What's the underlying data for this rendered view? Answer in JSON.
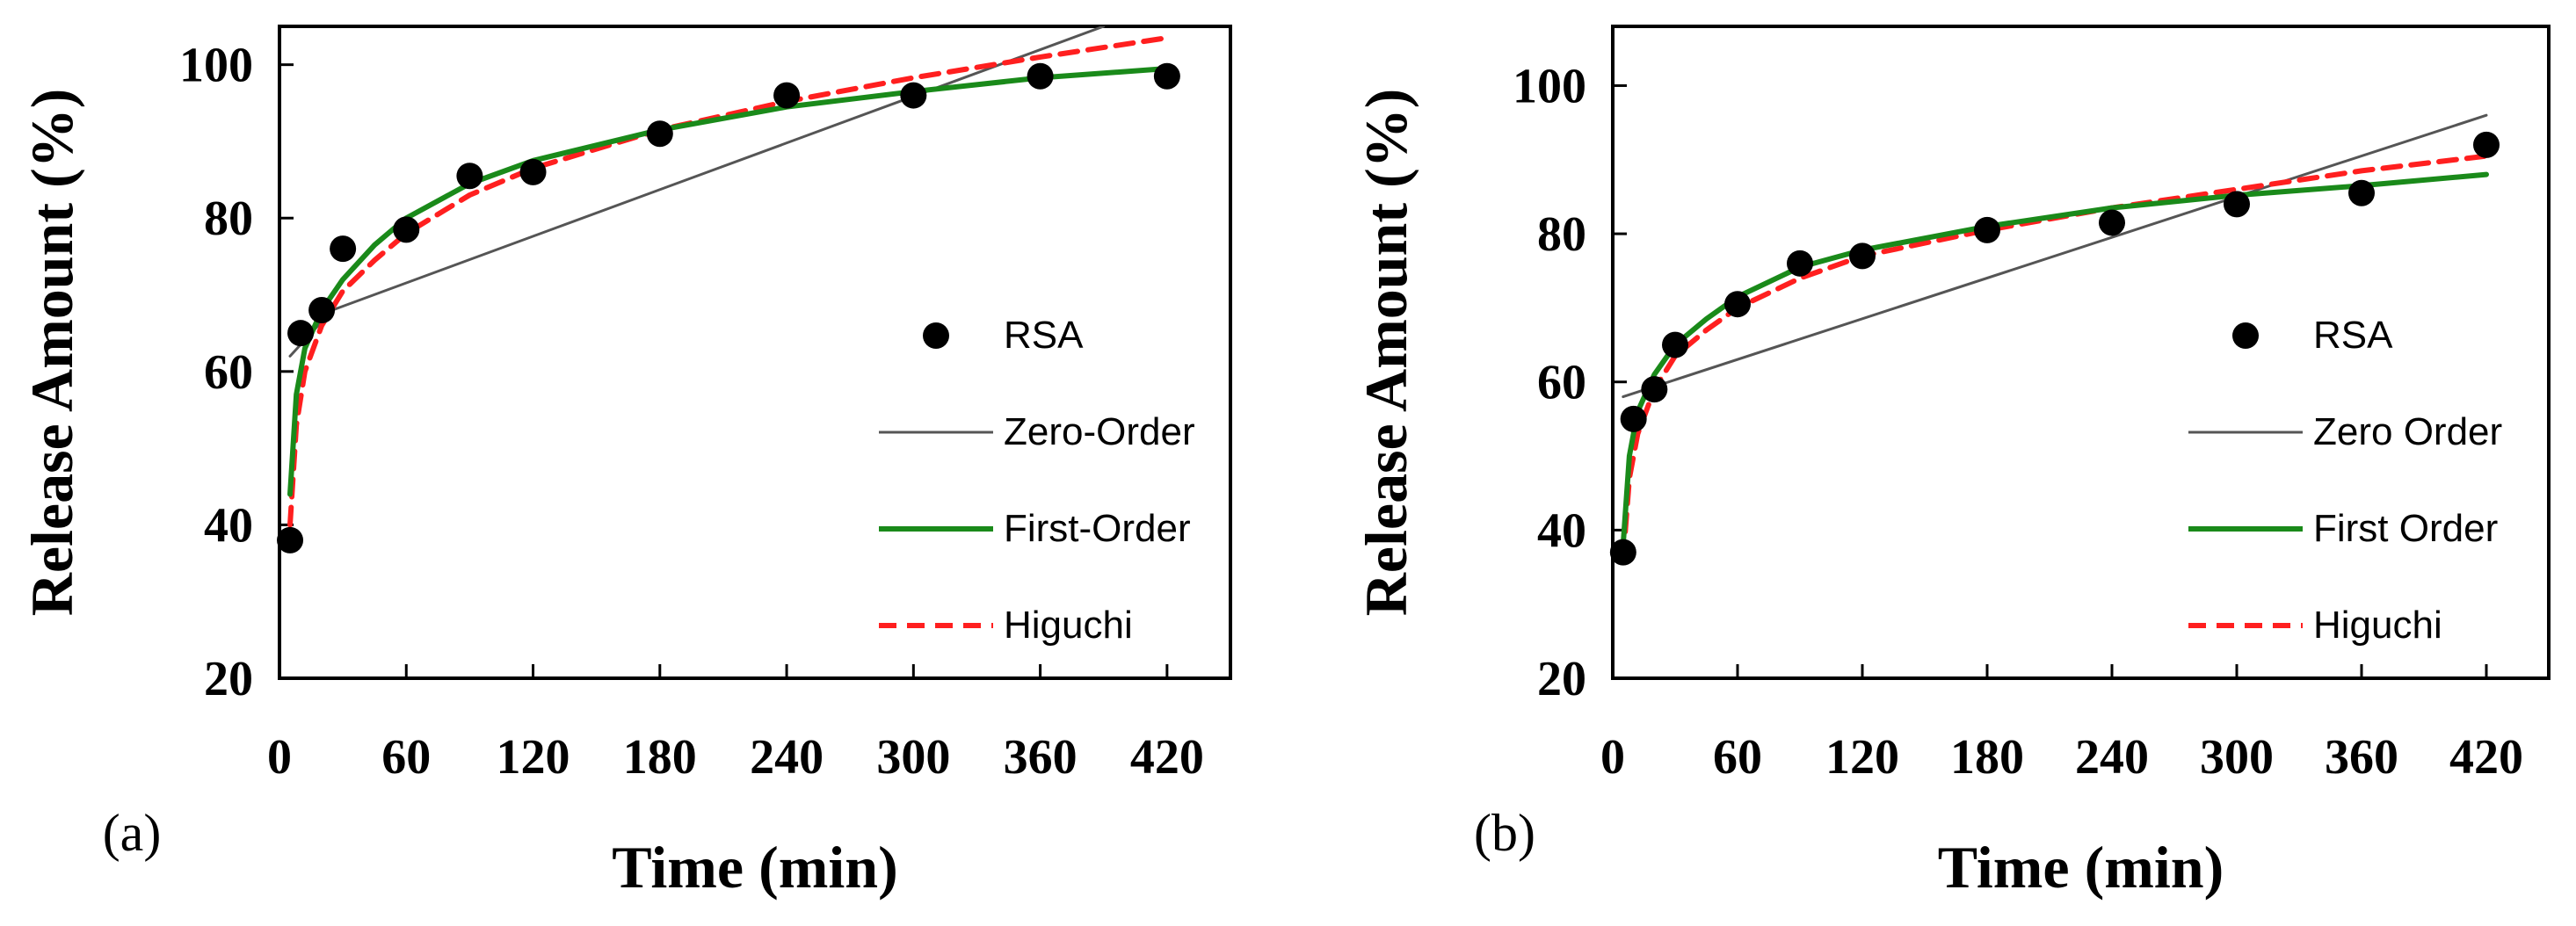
{
  "colors": {
    "data": "#000000",
    "zero_order": "#555555",
    "first_order": "#1a8a1a",
    "higuchi": "#ff1f1f"
  },
  "chart_data": [
    {
      "type": "line",
      "panel_label": "(a)",
      "xlabel": "Time (min)",
      "ylabel": "Release Amount (%)",
      "xlim": [
        0,
        450
      ],
      "ylim": [
        20,
        105
      ],
      "xticks": [
        "0",
        "60",
        "120",
        "180",
        "240",
        "300",
        "360",
        "420"
      ],
      "yticks": [
        "20",
        "40",
        "60",
        "80",
        "100"
      ],
      "legend_position": "right",
      "legend": [
        "RSA",
        "Zero-Order",
        "First-Order",
        "Higuchi"
      ],
      "series": [
        {
          "name": "RSA",
          "style": "points",
          "x": [
            5,
            10,
            20,
            30,
            60,
            90,
            120,
            180,
            240,
            300,
            360,
            420
          ],
          "y": [
            38,
            65,
            68,
            76,
            78.5,
            85.5,
            86,
            91,
            96,
            96,
            98.5,
            98.5
          ]
        },
        {
          "name": "Zero-Order",
          "style": "thin-line",
          "x": [
            5,
            25,
            390
          ],
          "y": [
            62,
            68,
            105
          ]
        },
        {
          "name": "First-Order",
          "style": "solid",
          "x": [
            5,
            8,
            12,
            20,
            30,
            45,
            60,
            90,
            120,
            180,
            240,
            300,
            360,
            420
          ],
          "y": [
            44,
            57,
            63,
            68,
            72,
            76.5,
            80,
            84.5,
            87.5,
            91.5,
            94.5,
            96.5,
            98.3,
            99.5
          ]
        },
        {
          "name": "Higuchi",
          "style": "dashed",
          "x": [
            5,
            8,
            12,
            20,
            30,
            45,
            60,
            90,
            120,
            180,
            240,
            300,
            360,
            420
          ],
          "y": [
            40,
            53,
            60,
            66,
            70.5,
            74.5,
            78,
            83,
            86.5,
            91.5,
            95.2,
            98.3,
            101,
            103.5
          ]
        }
      ]
    },
    {
      "type": "line",
      "panel_label": "(b)",
      "xlabel": "Time (min)",
      "ylabel": "Release Amount (%)",
      "xlim": [
        0,
        450
      ],
      "ylim": [
        20,
        108
      ],
      "xticks": [
        "0",
        "60",
        "120",
        "180",
        "240",
        "300",
        "360",
        "420"
      ],
      "yticks": [
        "20",
        "40",
        "60",
        "80",
        "100"
      ],
      "legend_position": "right",
      "legend": [
        "RSA",
        "Zero Order",
        "First Order",
        "Higuchi"
      ],
      "series": [
        {
          "name": "RSA",
          "style": "points",
          "x": [
            5,
            10,
            20,
            30,
            60,
            90,
            120,
            180,
            240,
            300,
            360,
            420
          ],
          "y": [
            37,
            55,
            59,
            65,
            70.5,
            76,
            77,
            80.5,
            81.5,
            84,
            85.5,
            92
          ]
        },
        {
          "name": "Zero Order",
          "style": "thin-line",
          "x": [
            5,
            420
          ],
          "y": [
            58,
            96
          ]
        },
        {
          "name": "First Order",
          "style": "solid",
          "x": [
            5,
            8,
            12,
            20,
            30,
            45,
            60,
            90,
            120,
            180,
            240,
            300,
            360,
            420
          ],
          "y": [
            38,
            50,
            56,
            61,
            65,
            68.5,
            71.5,
            75.5,
            77.8,
            81,
            83.5,
            85.2,
            86.5,
            88
          ]
        },
        {
          "name": "Higuchi",
          "style": "dashed",
          "x": [
            5,
            8,
            12,
            20,
            30,
            45,
            60,
            90,
            120,
            180,
            240,
            300,
            360,
            420
          ],
          "y": [
            36,
            47,
            53,
            59,
            63.5,
            67,
            70,
            74,
            77,
            80.5,
            83.5,
            86,
            88.5,
            90.5
          ]
        }
      ]
    }
  ]
}
